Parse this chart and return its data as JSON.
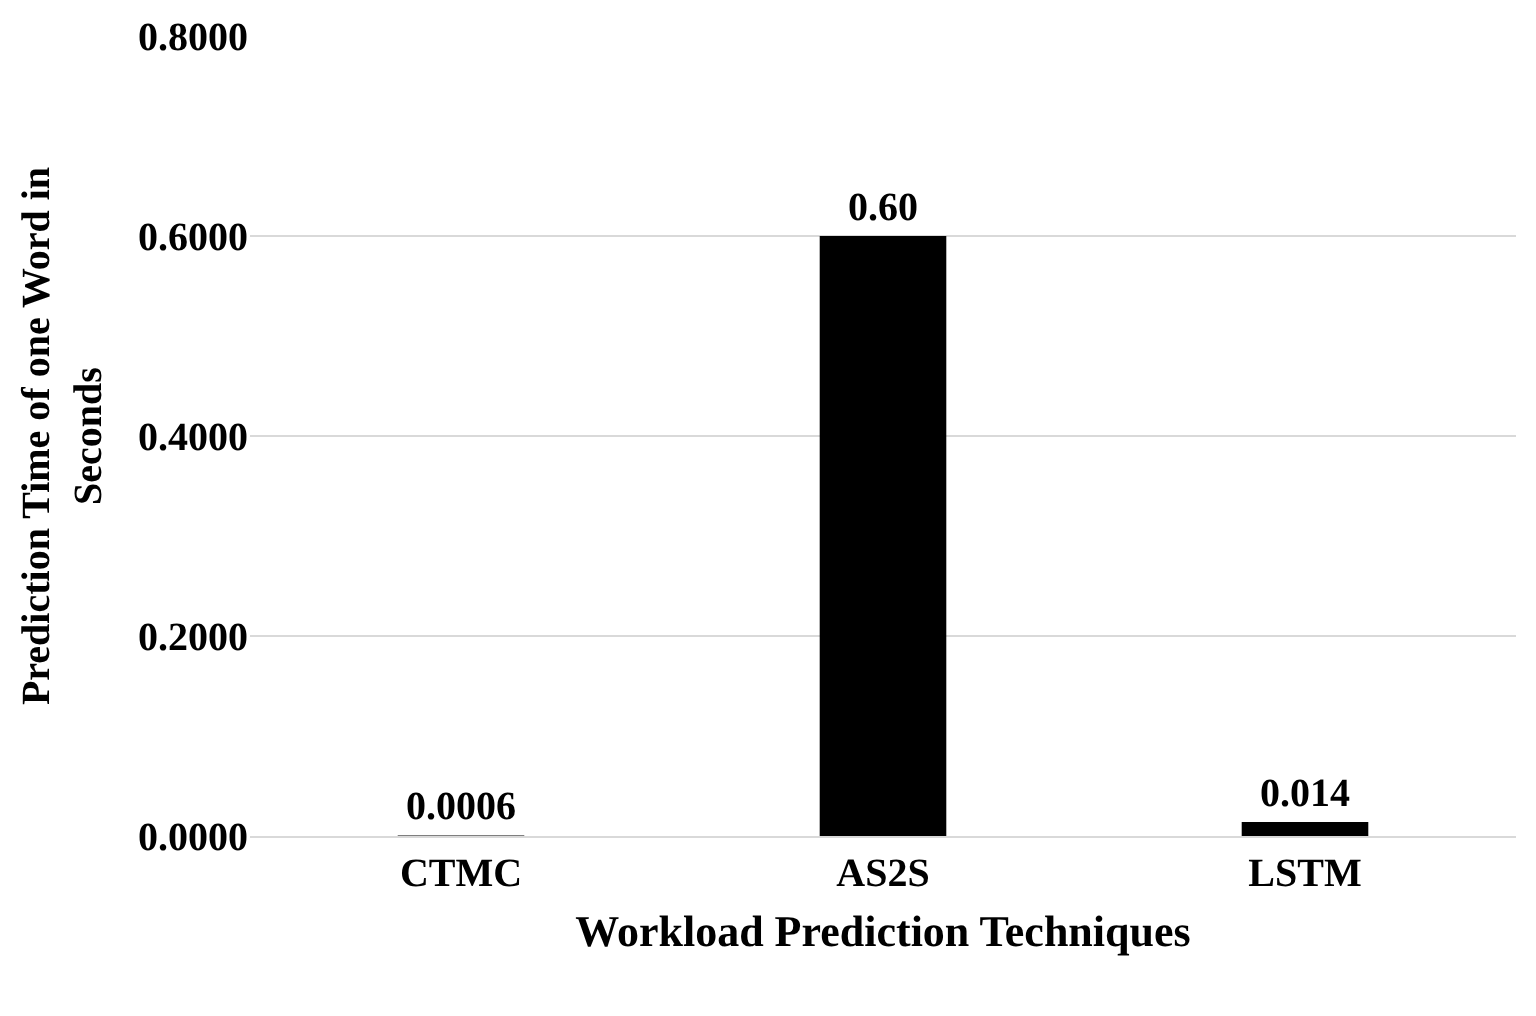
{
  "chart_data": {
    "type": "bar",
    "categories": [
      "CTMC",
      "AS2S",
      "LSTM"
    ],
    "values": [
      0.0006,
      0.6,
      0.014
    ],
    "value_labels": [
      "0.0006",
      "0.60",
      "0.014"
    ],
    "color": "#000000",
    "xlabel": "Workload Prediction Techniques",
    "ylabel": "Prediction Time of one Word in Seconds",
    "ylim": [
      0,
      0.8
    ],
    "yticks": [
      {
        "value": 0,
        "label": "0.0000"
      },
      {
        "value": 0.2,
        "label": "0.2000"
      },
      {
        "value": 0.4,
        "label": "0.4000"
      },
      {
        "value": 0.6,
        "label": "0.6000"
      },
      {
        "value": 0.8,
        "label": "0.8000"
      }
    ],
    "grid": "y"
  }
}
